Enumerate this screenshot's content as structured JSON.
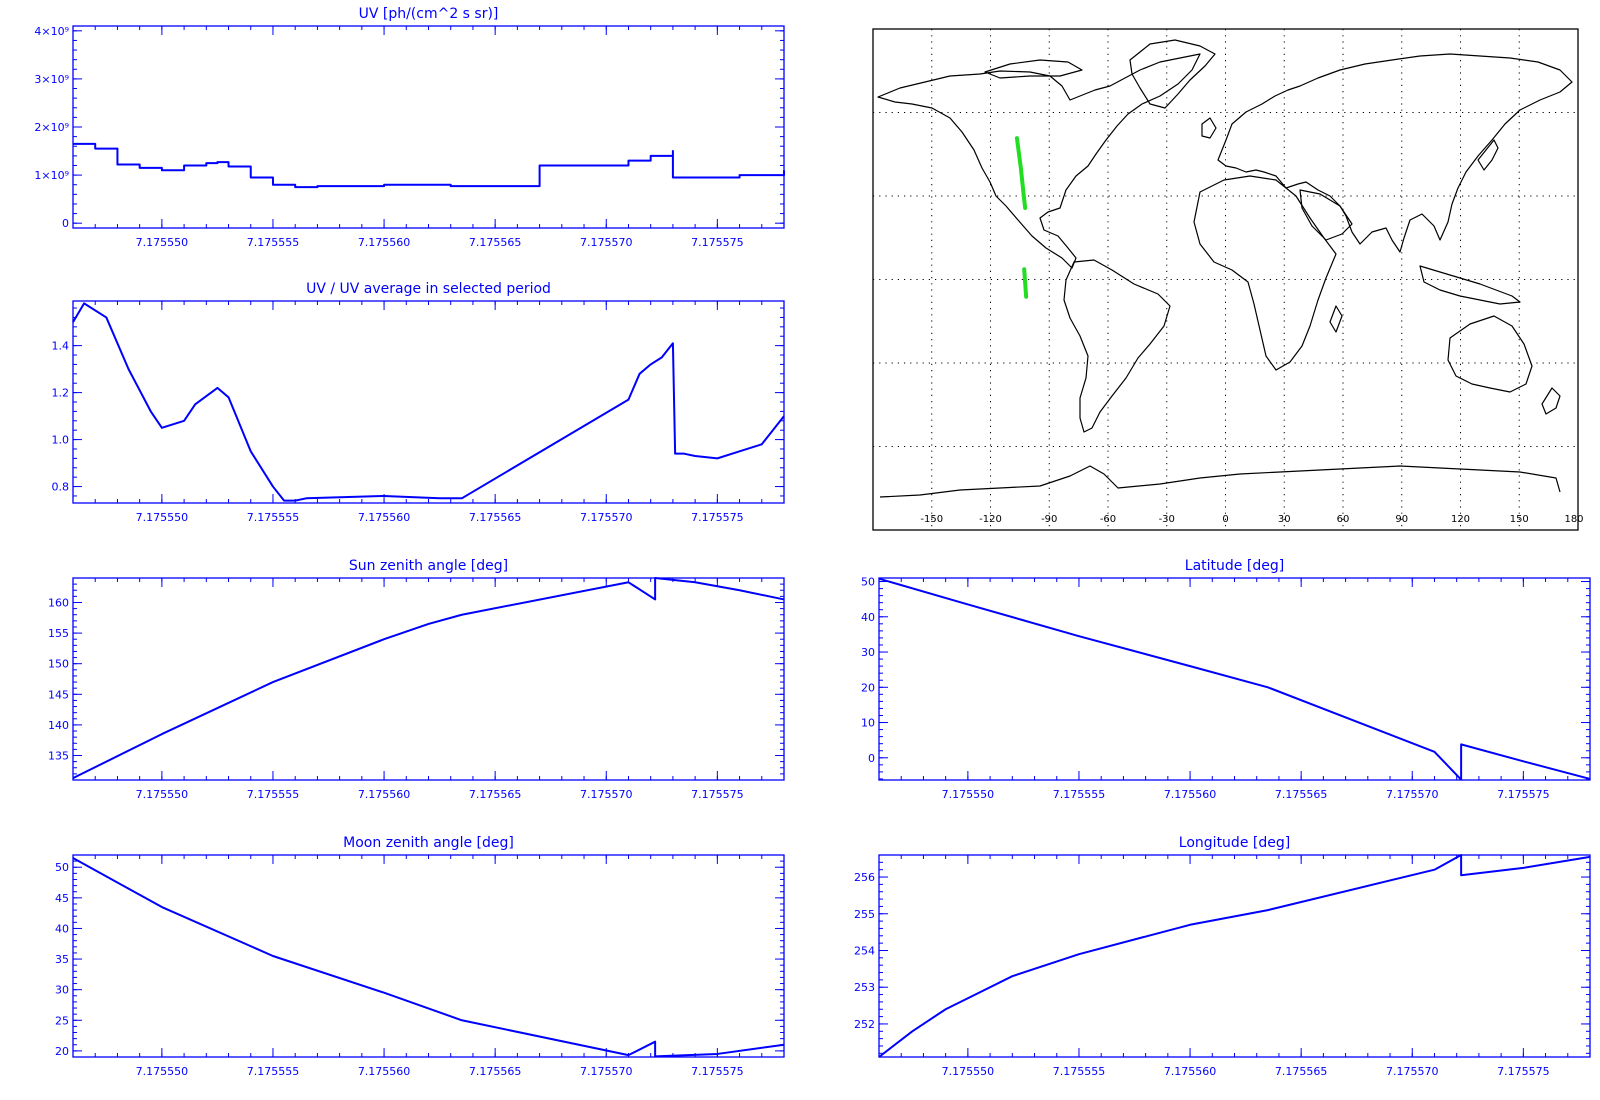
{
  "map": {
    "lon_ticks": [
      "-150",
      "-120",
      "-90",
      "-60",
      "-30",
      "0",
      "30",
      "60",
      "90",
      "120",
      "150",
      "180"
    ],
    "lon_values": [
      -150,
      -120,
      -90,
      -60,
      -30,
      0,
      30,
      60,
      90,
      120,
      150,
      180
    ],
    "lon_range": [
      -180,
      180
    ],
    "lat_range": [
      -90,
      90
    ],
    "lat_gridlines": [
      -60,
      -30,
      0,
      30,
      60
    ],
    "grid": "dotted",
    "land_color": "#000000",
    "track_color": "#22dd22",
    "track_segments": [
      [
        [
          -106.5,
          50.8
        ],
        [
          -104.5,
          40
        ],
        [
          -103.0,
          30
        ],
        [
          -102.3,
          25.7
        ]
      ],
      [
        [
          -102.8,
          3.7
        ],
        [
          -101.8,
          -6.2
        ]
      ]
    ]
  },
  "colors": {
    "plot": "#0000ff",
    "map_border": "#000000"
  },
  "chart_data": [
    {
      "type": "line",
      "title": "UV [ph/(cm^2 s sr)]",
      "x_tick_labels": [
        "7.175550",
        "7.175555",
        "7.175560",
        "7.175565",
        "7.175570",
        "7.175575"
      ],
      "x_ticks": [
        7.17555,
        7.175555,
        7.17556,
        7.175565,
        7.17557,
        7.175575
      ],
      "xlim": [
        7.175546,
        7.175578
      ],
      "y_tick_labels": [
        "0",
        "1×10⁹",
        "2×10⁹",
        "3×10⁹",
        "4×10⁹"
      ],
      "y_ticks": [
        0,
        1000000000.0,
        2000000000.0,
        3000000000.0,
        4000000000.0
      ],
      "ylim": [
        -100000000.0,
        4100000000.0
      ],
      "step": true,
      "x": [
        7.175546,
        7.175547,
        7.175548,
        7.175549,
        7.17555,
        7.175551,
        7.175552,
        7.1755525,
        7.175553,
        7.175554,
        7.175555,
        7.175556,
        7.175557,
        7.17556,
        7.17556,
        7.175563,
        7.175567,
        7.175567,
        7.175571,
        7.175572,
        7.175573,
        7.175573,
        7.175574,
        7.175576,
        7.175578
      ],
      "y": [
        1650000000.0,
        1550000000.0,
        1220000000.0,
        1150000000.0,
        1100000000.0,
        1200000000.0,
        1250000000.0,
        1270000000.0,
        1180000000.0,
        950000000.0,
        800000000.0,
        750000000.0,
        770000000.0,
        770000000.0,
        800000000.0,
        770000000.0,
        770000000.0,
        1200000000.0,
        1300000000.0,
        1400000000.0,
        1500000000.0,
        950000000.0,
        950000000.0,
        1000000000.0,
        1100000000.0
      ]
    },
    {
      "type": "line",
      "title": "UV / UV average in selected period",
      "x_tick_labels": [
        "7.175550",
        "7.175555",
        "7.175560",
        "7.175565",
        "7.175570",
        "7.175575"
      ],
      "x_ticks": [
        7.17555,
        7.175555,
        7.17556,
        7.175565,
        7.17557,
        7.175575
      ],
      "xlim": [
        7.175546,
        7.175578
      ],
      "y_tick_labels": [
        "0.8",
        "1.0",
        "1.2",
        "1.4"
      ],
      "y_ticks": [
        0.8,
        1.0,
        1.2,
        1.4
      ],
      "ylim": [
        0.73,
        1.59
      ],
      "x": [
        7.175546,
        7.1755465,
        7.1755475,
        7.1755485,
        7.1755495,
        7.17555,
        7.175551,
        7.1755515,
        7.1755525,
        7.175553,
        7.175554,
        7.175555,
        7.1755555,
        7.175556,
        7.1755565,
        7.17556,
        7.1755625,
        7.1755635,
        7.175571,
        7.1755715,
        7.175572,
        7.1755725,
        7.175573,
        7.1755731,
        7.1755735,
        7.175574,
        7.175575,
        7.175576,
        7.175577,
        7.175578
      ],
      "y": [
        1.5,
        1.58,
        1.52,
        1.3,
        1.12,
        1.05,
        1.08,
        1.15,
        1.22,
        1.18,
        0.95,
        0.8,
        0.74,
        0.74,
        0.75,
        0.76,
        0.75,
        0.75,
        1.17,
        1.28,
        1.32,
        1.35,
        1.41,
        0.94,
        0.94,
        0.93,
        0.92,
        0.95,
        0.98,
        1.1
      ]
    },
    {
      "type": "line",
      "title": "Sun zenith angle [deg]",
      "x_tick_labels": [
        "7.175550",
        "7.175555",
        "7.175560",
        "7.175565",
        "7.175570",
        "7.175575"
      ],
      "x_ticks": [
        7.17555,
        7.175555,
        7.17556,
        7.175565,
        7.17557,
        7.175575
      ],
      "xlim": [
        7.175546,
        7.175578
      ],
      "y_tick_labels": [
        "135",
        "140",
        "145",
        "150",
        "155",
        "160"
      ],
      "y_ticks": [
        135,
        140,
        145,
        150,
        155,
        160
      ],
      "ylim": [
        131,
        164
      ],
      "x": [
        7.175546,
        7.17555,
        7.175555,
        7.17556,
        7.175562,
        7.1755635,
        7.175571,
        7.1755722,
        7.1755722,
        7.175574,
        7.175576,
        7.175578
      ],
      "y": [
        131.3,
        138.5,
        147.0,
        154.0,
        156.5,
        158.0,
        163.3,
        160.5,
        164.0,
        163.3,
        162.0,
        160.5
      ]
    },
    {
      "type": "line",
      "title": "Latitude [deg]",
      "x_tick_labels": [
        "7.175550",
        "7.175555",
        "7.175560",
        "7.175565",
        "7.175570",
        "7.175575"
      ],
      "x_ticks": [
        7.17555,
        7.175555,
        7.17556,
        7.175565,
        7.17557,
        7.175575
      ],
      "xlim": [
        7.175546,
        7.175578
      ],
      "y_tick_labels": [
        "0",
        "10",
        "20",
        "30",
        "40",
        "50"
      ],
      "y_ticks": [
        0,
        10,
        20,
        30,
        40,
        50
      ],
      "ylim": [
        -6.3,
        51
      ],
      "x": [
        7.175546,
        7.17555,
        7.175555,
        7.17556,
        7.1755635,
        7.175571,
        7.1755722,
        7.1755722,
        7.175575,
        7.175578
      ],
      "y": [
        50.8,
        43.5,
        34.5,
        26.0,
        20.0,
        1.7,
        -6.2,
        3.8,
        -1.0,
        -6.0
      ]
    },
    {
      "type": "line",
      "title": "Moon zenith angle [deg]",
      "x_tick_labels": [
        "7.175550",
        "7.175555",
        "7.175560",
        "7.175565",
        "7.175570",
        "7.175575"
      ],
      "x_ticks": [
        7.17555,
        7.175555,
        7.17556,
        7.175565,
        7.17557,
        7.175575
      ],
      "xlim": [
        7.175546,
        7.175578
      ],
      "y_tick_labels": [
        "20",
        "25",
        "30",
        "35",
        "40",
        "45",
        "50"
      ],
      "y_ticks": [
        20,
        25,
        30,
        35,
        40,
        45,
        50
      ],
      "ylim": [
        19,
        52
      ],
      "x": [
        7.175546,
        7.17555,
        7.175555,
        7.17556,
        7.1755635,
        7.175571,
        7.1755722,
        7.1755722,
        7.175575,
        7.175578
      ],
      "y": [
        51.5,
        43.5,
        35.5,
        29.5,
        25.0,
        19.3,
        21.5,
        19.1,
        19.5,
        21.0
      ]
    },
    {
      "type": "line",
      "title": "Longitude [deg]",
      "x_tick_labels": [
        "7.175550",
        "7.175555",
        "7.175560",
        "7.175565",
        "7.175570",
        "7.175575"
      ],
      "x_ticks": [
        7.17555,
        7.175555,
        7.17556,
        7.175565,
        7.17557,
        7.175575
      ],
      "xlim": [
        7.175546,
        7.175578
      ],
      "y_tick_labels": [
        "252",
        "253",
        "254",
        "255",
        "256"
      ],
      "y_ticks": [
        252,
        253,
        254,
        255,
        256
      ],
      "ylim": [
        251.1,
        256.6
      ],
      "x": [
        7.175546,
        7.1755475,
        7.175549,
        7.17555,
        7.175552,
        7.175555,
        7.17556,
        7.1755635,
        7.175571,
        7.1755722,
        7.1755722,
        7.175575,
        7.175578
      ],
      "y": [
        251.1,
        251.8,
        252.4,
        252.7,
        253.3,
        253.9,
        254.7,
        255.1,
        256.2,
        256.6,
        256.05,
        256.25,
        256.55
      ]
    }
  ]
}
